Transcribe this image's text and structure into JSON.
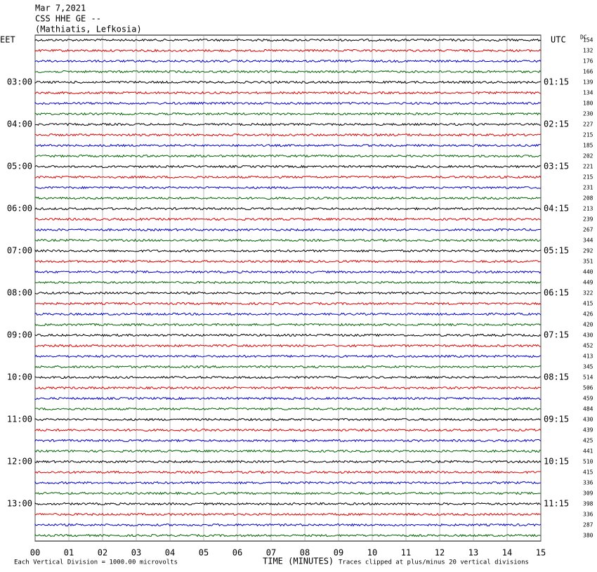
{
  "header": {
    "date": "Mar 7,2021",
    "station": "CSS HHE GE --",
    "location": "(Mathiatis, Lefkosia)"
  },
  "left_zone": "EET",
  "right_zone": "UTC",
  "dc_title": "DC",
  "left_hours": [
    "03:00",
    "04:00",
    "05:00",
    "06:00",
    "07:00",
    "08:00",
    "09:00",
    "10:00",
    "11:00",
    "12:00",
    "13:00"
  ],
  "right_hours": [
    "01:15",
    "02:15",
    "03:15",
    "04:15",
    "05:15",
    "06:15",
    "07:15",
    "08:15",
    "09:15",
    "10:15",
    "11:15"
  ],
  "dc_values": [
    154,
    132,
    176,
    166,
    139,
    134,
    180,
    230,
    227,
    215,
    185,
    202,
    221,
    215,
    231,
    208,
    213,
    239,
    267,
    344,
    292,
    351,
    440,
    449,
    322,
    415,
    426,
    420,
    430,
    452,
    413,
    345,
    514,
    506,
    459,
    484,
    430,
    439,
    425,
    441,
    510,
    415,
    336,
    309,
    398,
    336,
    287,
    380
  ],
  "minute_labels": [
    "00",
    "01",
    "02",
    "03",
    "04",
    "05",
    "06",
    "07",
    "08",
    "09",
    "10",
    "11",
    "12",
    "13",
    "14",
    "15"
  ],
  "footer": {
    "scale": "Each Vertical Division = 1000.00 microvolts",
    "axis_title": "TIME (MINUTES)",
    "clip_note": "Traces clipped at plus/minus 20 vertical divisions"
  }
}
